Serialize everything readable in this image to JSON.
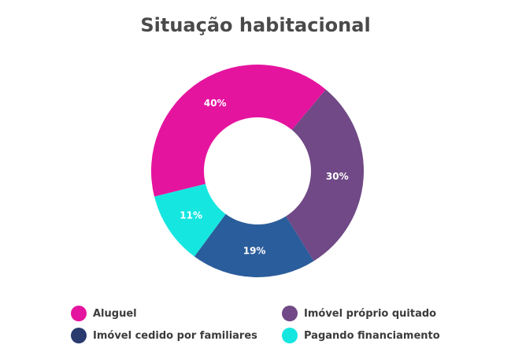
{
  "chart_data": {
    "type": "pie",
    "title": "Situação habitacional",
    "slices": [
      {
        "label": "Aluguel",
        "value": 40,
        "display": "40%",
        "color": "#e5149f"
      },
      {
        "label": "Imóvel próprio quitado",
        "value": 30,
        "display": "30%",
        "color": "#704986"
      },
      {
        "label": "Imóvel cedido por familiares",
        "value": 19,
        "display": "19%",
        "color": "#2a5d9b"
      },
      {
        "label": "Pagando financiamento",
        "value": 11,
        "display": "11%",
        "color": "#16e6e0"
      }
    ],
    "legend_position": "bottom"
  },
  "legend_colors": {
    "aluguel": "#e5149f",
    "proprio": "#704986",
    "cedido": "#283a6e",
    "financiamento": "#16e6e0"
  }
}
